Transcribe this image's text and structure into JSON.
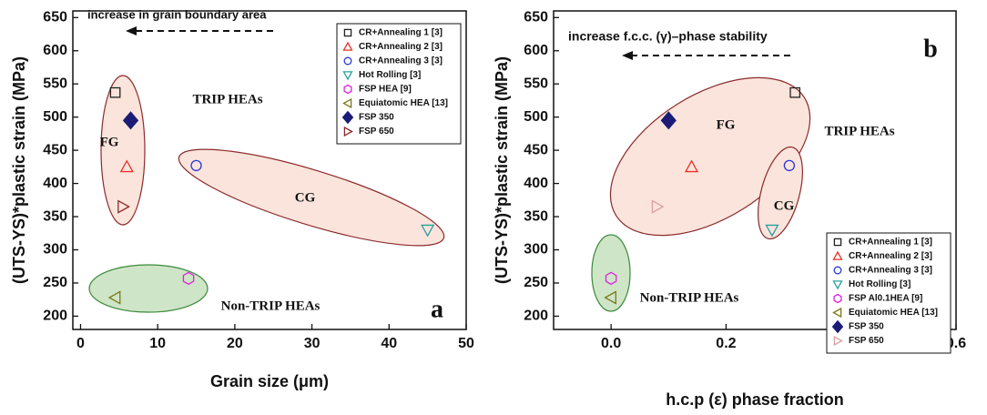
{
  "chart_data": [
    {
      "type": "scatter",
      "xlabel": "Grain size (μm)",
      "ylabel": "(UTS-YS)*plastic strain (MPa)",
      "xlim": [
        -1,
        50
      ],
      "xticks": [
        0,
        10,
        20,
        30,
        40,
        50
      ],
      "ylim": [
        180,
        660
      ],
      "yticks": [
        200,
        250,
        300,
        350,
        400,
        450,
        500,
        550,
        600,
        650
      ],
      "legend": "upper right",
      "annotations": [
        "increase in grain boundary area",
        "TRIP HEAs",
        "FG",
        "CG",
        "Non-TRIP HEAs",
        "a"
      ],
      "series": [
        {
          "name": "CR+Annealing 1 [3]",
          "color": "#222222",
          "marker": "square",
          "x": [
            4.5
          ],
          "values": [
            537
          ]
        },
        {
          "name": "CR+Annealing 2 [3]",
          "color": "#e8322a",
          "marker": "triangle-up",
          "x": [
            6
          ],
          "values": [
            425
          ]
        },
        {
          "name": "CR+Annealing 3 [3]",
          "color": "#2a36d8",
          "marker": "circle",
          "x": [
            15
          ],
          "values": [
            427
          ]
        },
        {
          "name": "Hot Rolling [3]",
          "color": "#2aa0a0",
          "marker": "triangle-down",
          "x": [
            45
          ],
          "values": [
            330
          ]
        },
        {
          "name": "FSP HEA [9]",
          "color": "#e020e0",
          "marker": "hexagon",
          "x": [
            14
          ],
          "values": [
            257
          ]
        },
        {
          "name": "Equiatomic HEA [13]",
          "color": "#7a7a1a",
          "marker": "triangle-left",
          "x": [
            4.5
          ],
          "values": [
            228
          ]
        },
        {
          "name": "FSP 350",
          "color": "#1c1c78",
          "marker": "diamond",
          "x": [
            6.5
          ],
          "values": [
            495
          ]
        },
        {
          "name": "FSP 650",
          "color": "#8b2a2a",
          "marker": "triangle-right",
          "x": [
            5.5
          ],
          "values": [
            365
          ]
        }
      ]
    },
    {
      "type": "scatter",
      "xlabel": "h.c.p (ε) phase fraction",
      "ylabel": "(UTS-YS)*plastic strain (MPa)",
      "xlim": [
        -0.1,
        0.6
      ],
      "xticks": [
        {
          "value": 0,
          "label": "0.0"
        },
        0.2,
        0.4,
        0.6
      ],
      "ylim": [
        180,
        660
      ],
      "yticks": [
        200,
        250,
        300,
        350,
        400,
        450,
        500,
        550,
        600,
        650
      ],
      "legend": "lower right",
      "annotations": [
        "increase f.c.c. (γ)–phase stability",
        "b",
        "FG",
        "TRIP HEAs",
        "CG",
        "Non-TRIP HEAs"
      ],
      "series": [
        {
          "name": "CR+Annealing 1 [3]",
          "color": "#222222",
          "marker": "square",
          "x": [
            0.32
          ],
          "values": [
            537
          ]
        },
        {
          "name": "CR+Annealing 2 [3]",
          "color": "#e8322a",
          "marker": "triangle-up",
          "x": [
            0.14
          ],
          "values": [
            425
          ]
        },
        {
          "name": "CR+Annealing 3 [3]",
          "color": "#2a36d8",
          "marker": "circle",
          "x": [
            0.31
          ],
          "values": [
            427
          ]
        },
        {
          "name": "Hot Rolling [3]",
          "color": "#2aa0a0",
          "marker": "triangle-down",
          "x": [
            0.28
          ],
          "values": [
            330
          ]
        },
        {
          "name": "FSP Al0.1HEA [9]",
          "color": "#e020e0",
          "marker": "hexagon",
          "x": [
            0
          ],
          "values": [
            257
          ]
        },
        {
          "name": "Equiatomic HEA [13]",
          "color": "#7a7a1a",
          "marker": "triangle-left",
          "x": [
            0
          ],
          "values": [
            228
          ]
        },
        {
          "name": "FSP 350",
          "color": "#1c1c78",
          "marker": "diamond",
          "x": [
            0.1
          ],
          "values": [
            495
          ]
        },
        {
          "name": "FSP 650",
          "color": "#d8a0a0",
          "marker": "triangle-right",
          "x": [
            0.08
          ],
          "values": [
            365
          ]
        }
      ]
    }
  ]
}
